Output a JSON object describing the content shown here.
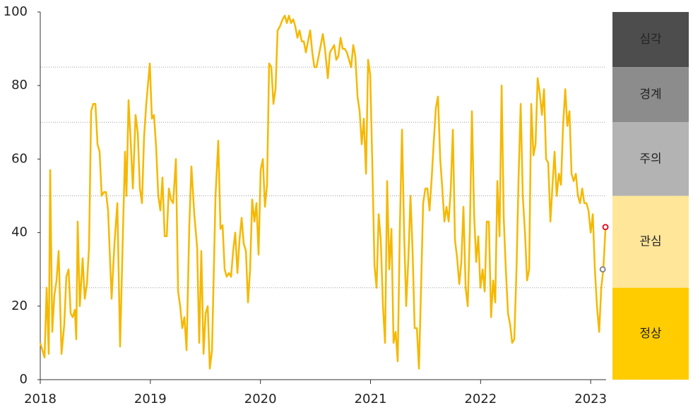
{
  "chart_data": {
    "type": "line",
    "color": "#f5b800",
    "xlim": [
      2018,
      2023.14
    ],
    "xticks": [
      2018,
      2019,
      2020,
      2021,
      2022,
      2023
    ],
    "ylim": [
      0,
      100
    ],
    "yticks": [
      0,
      20,
      40,
      60,
      80,
      100
    ],
    "x": [
      2018.0,
      2018.039,
      2018.058,
      2018.077,
      2018.09,
      2018.109,
      2018.128,
      2018.148,
      2018.167,
      2018.193,
      2018.218,
      2018.237,
      2018.257,
      2018.276,
      2018.295,
      2018.314,
      2018.327,
      2018.34,
      2018.359,
      2018.385,
      2018.404,
      2018.424,
      2018.443,
      2018.462,
      2018.481,
      2018.501,
      2018.52,
      2018.539,
      2018.558,
      2018.578,
      2018.597,
      2018.616,
      2018.648,
      2018.674,
      2018.7,
      2018.725,
      2018.751,
      2018.77,
      2018.783,
      2018.802,
      2018.821,
      2018.841,
      2018.866,
      2018.886,
      2018.905,
      2018.924,
      2018.943,
      2018.963,
      2018.995,
      2019.014,
      2019.033,
      2019.053,
      2019.072,
      2019.091,
      2019.11,
      2019.13,
      2019.149,
      2019.168,
      2019.187,
      2019.207,
      2019.232,
      2019.252,
      2019.271,
      2019.29,
      2019.309,
      2019.329,
      2019.354,
      2019.373,
      2019.399,
      2019.425,
      2019.444,
      2019.463,
      2019.483,
      2019.502,
      2019.521,
      2019.54,
      2019.56,
      2019.592,
      2019.617,
      2019.637,
      2019.656,
      2019.675,
      2019.694,
      2019.714,
      2019.733,
      2019.752,
      2019.771,
      2019.791,
      2019.81,
      2019.829,
      2019.848,
      2019.868,
      2019.887,
      2019.906,
      2019.925,
      2019.945,
      2019.964,
      2019.983,
      2020.002,
      2020.022,
      2020.041,
      2020.06,
      2020.079,
      2020.099,
      2020.118,
      2020.137,
      2020.156,
      2020.176,
      2020.201,
      2020.221,
      2020.24,
      2020.259,
      2020.278,
      2020.298,
      2020.317,
      2020.336,
      2020.355,
      2020.375,
      2020.394,
      2020.413,
      2020.432,
      2020.452,
      2020.471,
      2020.49,
      2020.509,
      2020.529,
      2020.548,
      2020.567,
      2020.586,
      2020.612,
      2020.631,
      2020.651,
      2020.67,
      2020.689,
      2020.708,
      2020.728,
      2020.747,
      2020.766,
      2020.785,
      2020.805,
      2020.824,
      2020.843,
      2020.862,
      2020.882,
      2020.901,
      2020.92,
      2020.939,
      2020.959,
      2020.978,
      2020.997,
      2021.016,
      2021.036,
      2021.055,
      2021.074,
      2021.093,
      2021.113,
      2021.132,
      2021.151,
      2021.17,
      2021.19,
      2021.209,
      2021.228,
      2021.247,
      2021.267,
      2021.286,
      2021.305,
      2021.324,
      2021.344,
      2021.363,
      2021.382,
      2021.401,
      2021.421,
      2021.44,
      2021.459,
      2021.478,
      2021.498,
      2021.517,
      2021.536,
      2021.556,
      2021.575,
      2021.594,
      2021.613,
      2021.633,
      2021.652,
      2021.671,
      2021.69,
      2021.71,
      2021.729,
      2021.748,
      2021.767,
      2021.787,
      2021.806,
      2021.825,
      2021.844,
      2021.864,
      2021.883,
      2021.902,
      2021.921,
      2021.941,
      2021.96,
      2021.979,
      2021.998,
      2022.018,
      2022.037,
      2022.056,
      2022.075,
      2022.095,
      2022.114,
      2022.133,
      2022.152,
      2022.172,
      2022.191,
      2022.21,
      2022.229,
      2022.249,
      2022.268,
      2022.287,
      2022.306,
      2022.326,
      2022.345,
      2022.364,
      2022.383,
      2022.403,
      2022.422,
      2022.441,
      2022.46,
      2022.48,
      2022.499,
      2022.518,
      2022.537,
      2022.557,
      2022.576,
      2022.595,
      2022.614,
      2022.634,
      2022.653,
      2022.672,
      2022.691,
      2022.711,
      2022.73,
      2022.749,
      2022.769,
      2022.788,
      2022.807,
      2022.826,
      2022.846,
      2022.865,
      2022.884,
      2022.903,
      2022.923,
      2022.942,
      2022.961,
      2022.98,
      2023.0,
      2023.019,
      2023.038,
      2023.057,
      2023.077,
      2023.096,
      2023.115,
      2023.134
    ],
    "values": [
      10,
      6,
      25,
      7,
      57,
      13,
      23,
      27,
      35,
      7,
      15,
      28,
      30,
      18,
      17,
      19,
      11,
      43,
      20,
      33,
      22,
      26,
      36,
      73,
      75,
      75,
      64,
      62,
      50,
      51,
      51,
      46,
      22,
      37,
      48,
      9,
      40,
      62,
      50,
      76,
      65,
      52,
      72,
      67,
      52,
      48,
      66,
      75,
      86,
      71,
      72,
      63,
      50,
      46,
      55,
      39,
      39,
      52,
      49,
      48,
      60,
      24,
      20,
      14,
      17,
      8,
      42,
      58,
      45,
      36,
      10,
      35,
      7,
      18,
      20,
      3,
      8,
      50,
      65,
      41,
      42,
      30,
      28,
      29,
      28,
      35,
      40,
      29,
      38,
      44,
      37,
      35,
      21,
      30,
      49,
      43,
      48,
      34,
      57,
      60,
      47,
      53,
      86,
      85,
      75,
      79,
      95,
      96,
      98,
      99,
      97,
      99,
      97,
      98,
      96,
      93,
      95,
      92,
      92,
      89,
      92,
      95,
      89,
      85,
      85,
      88,
      91,
      94,
      90,
      82,
      89,
      90,
      91,
      87,
      88,
      93,
      90,
      90,
      89,
      87,
      85,
      91,
      88,
      77,
      73,
      64,
      71,
      56,
      87,
      83,
      59,
      31,
      25,
      45,
      38,
      20,
      10,
      54,
      30,
      41,
      10,
      13,
      5,
      42,
      68,
      40,
      20,
      33,
      50,
      35,
      14,
      14,
      3,
      25,
      48,
      52,
      52,
      46,
      55,
      65,
      74,
      77,
      60,
      52,
      43,
      47,
      43,
      52,
      68,
      38,
      33,
      26,
      32,
      47,
      25,
      20,
      40,
      73,
      45,
      32,
      39,
      25,
      30,
      24,
      43,
      43,
      17,
      27,
      21,
      54,
      39,
      80,
      44,
      30,
      18,
      15,
      10,
      11,
      30,
      55,
      75,
      50,
      40,
      27,
      30,
      75,
      61,
      64,
      82,
      78,
      72,
      79,
      60,
      59,
      43,
      53,
      62,
      50,
      56,
      53,
      69,
      79,
      69,
      73,
      56,
      54,
      56,
      50,
      48,
      52,
      48,
      48,
      46,
      40,
      45,
      30,
      20,
      13,
      25,
      30,
      41
    ],
    "points": [
      {
        "x": 2023.109,
        "y": 30,
        "color": "#7f7f7f"
      },
      {
        "x": 2023.134,
        "y": 41.5,
        "color": "#e60012"
      }
    ],
    "bands": [
      {
        "label": "심각",
        "from": 85,
        "to": 100,
        "color": "#4d4d4d",
        "text_color": "#e6e6e6"
      },
      {
        "label": "경계",
        "from": 70,
        "to": 85,
        "color": "#8c8c8c",
        "text_color": "#f2f2f2"
      },
      {
        "label": "주의",
        "from": 50,
        "to": 70,
        "color": "#b3b3b3",
        "text_color": "#333333"
      },
      {
        "label": "관심",
        "from": 25,
        "to": 50,
        "color": "#ffe699",
        "text_color": "#333333"
      },
      {
        "label": "정상",
        "from": 0,
        "to": 25,
        "color": "#ffcc00",
        "text_color": "#333333"
      }
    ]
  }
}
